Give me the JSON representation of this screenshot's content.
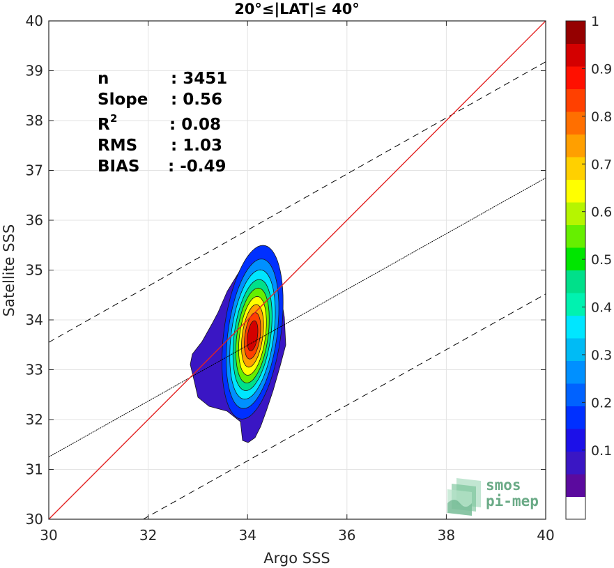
{
  "chart_data": {
    "type": "heatmap",
    "title": "20°≤|LAT|≤ 40°",
    "xlabel": "Argo SSS",
    "ylabel": "Satellite SSS",
    "xlim": [
      30,
      40
    ],
    "ylim": [
      30,
      40
    ],
    "xticks": [
      "30",
      "32",
      "34",
      "36",
      "38",
      "40"
    ],
    "yticks": [
      "30",
      "31",
      "32",
      "33",
      "34",
      "35",
      "36",
      "37",
      "38",
      "39",
      "40"
    ],
    "grid": true,
    "stats": {
      "n_label": "n",
      "n_value": ": 3451",
      "slope_label": "Slope",
      "slope_value": ": 0.56",
      "r2_label": "R",
      "r2_sup": "2",
      "r2_value": ": 0.08",
      "rms_label": "RMS",
      "rms_value": ": 1.03",
      "bias_label": "BIAS",
      "bias_value": ": -0.49"
    },
    "identity_line": {
      "color": "#e32222",
      "x": [
        30,
        40
      ],
      "y": [
        30,
        40
      ]
    },
    "regression_line": {
      "color": "#000000",
      "x": [
        30,
        40
      ],
      "y": [
        31.25,
        36.85
      ]
    },
    "upper_rms_line": {
      "color": "#000000",
      "x": [
        30,
        40
      ],
      "y": [
        33.55,
        39.18
      ]
    },
    "lower_rms_line": {
      "color": "#000000",
      "x": [
        31.9,
        40
      ],
      "y": [
        30,
        34.52
      ]
    },
    "density_center": [
      34.1,
      33.68
    ],
    "density_levels": [
      0.05,
      0.1,
      0.2,
      0.3,
      0.4,
      0.5,
      0.6,
      0.7,
      0.8,
      0.9
    ],
    "colorbar": {
      "ticks": [
        "0.1",
        "0.2",
        "0.3",
        "0.4",
        "0.5",
        "0.6",
        "0.7",
        "0.8",
        "0.9",
        "1"
      ],
      "tick_values": [
        0.1,
        0.2,
        0.3,
        0.4,
        0.5,
        0.6,
        0.7,
        0.8,
        0.9,
        1.0
      ],
      "colors": [
        "#ffffff",
        "#5b0a9e",
        "#3a16c4",
        "#1c10e8",
        "#0030ff",
        "#0062ff",
        "#0090ff",
        "#00bbf5",
        "#00e6ff",
        "#00f2b0",
        "#00e08a",
        "#00e600",
        "#66ef00",
        "#b6f500",
        "#ffff00",
        "#ffd000",
        "#ff9f00",
        "#ff6f00",
        "#ff4000",
        "#ff1000",
        "#d40000",
        "#950000"
      ]
    }
  },
  "logo": {
    "line1": "smos",
    "line2": "pi-mep"
  }
}
